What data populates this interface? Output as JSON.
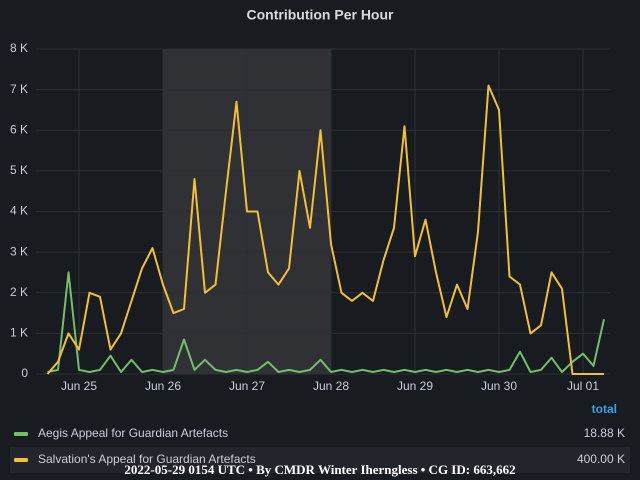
{
  "chart_data": {
    "type": "line",
    "title": "Contribution Per Hour",
    "categories": [
      null,
      null,
      null,
      "Jun 25",
      null,
      null,
      null,
      null,
      null,
      null,
      null,
      "Jun 26",
      null,
      null,
      null,
      null,
      null,
      null,
      null,
      "Jun 27",
      null,
      null,
      null,
      null,
      null,
      null,
      null,
      "Jun 28",
      null,
      null,
      null,
      null,
      null,
      null,
      null,
      "Jun 29",
      null,
      null,
      null,
      null,
      null,
      null,
      null,
      "Jun 30",
      null,
      null,
      null,
      null,
      null,
      null,
      null,
      "Jul 01",
      null,
      null
    ],
    "series": [
      {
        "name": "Aegis Appeal for Guardian Artefacts",
        "color": "#73bf69",
        "total": "18.88 K",
        "values": [
          50,
          100,
          2500,
          100,
          50,
          100,
          450,
          50,
          350,
          50,
          100,
          50,
          100,
          850,
          100,
          350,
          100,
          50,
          100,
          50,
          100,
          300,
          50,
          100,
          50,
          100,
          350,
          50,
          100,
          50,
          100,
          50,
          100,
          50,
          100,
          50,
          100,
          50,
          100,
          50,
          100,
          50,
          100,
          50,
          100,
          550,
          50,
          100,
          400,
          50,
          300,
          500,
          200,
          1350
        ]
      },
      {
        "name": "Salvation's Appeal for Guardian Artefacts",
        "color": "#f2c037",
        "total": "400.00 K",
        "values": [
          0,
          300,
          1000,
          600,
          2000,
          1900,
          600,
          1000,
          1800,
          2600,
          3100,
          2200,
          1500,
          1600,
          4800,
          2000,
          2200,
          4500,
          6700,
          4000,
          4000,
          2500,
          2200,
          2600,
          5000,
          3600,
          6000,
          3200,
          2000,
          1800,
          2000,
          1800,
          2800,
          3600,
          6100,
          2900,
          3800,
          2500,
          1400,
          2200,
          1600,
          3500,
          7100,
          6500,
          2400,
          2200,
          1000,
          1200,
          2500,
          2100,
          0,
          0,
          0,
          0
        ]
      }
    ],
    "ylim": [
      0,
      8000
    ],
    "yticks": [
      0,
      {
        "value": 1000,
        "label": "1 K"
      },
      {
        "value": 2000,
        "label": "2 K"
      },
      {
        "value": 3000,
        "label": "3 K"
      },
      {
        "value": 4000,
        "label": "4 K"
      },
      {
        "value": 5000,
        "label": "5 K"
      },
      {
        "value": 6000,
        "label": "6 K"
      },
      {
        "value": 7000,
        "label": "7 K"
      },
      {
        "value": 8000,
        "label": "8 K"
      }
    ],
    "grid": true,
    "legend_column": "total",
    "footer": "2022-05-29 0154 UTC • By CMDR Winter Iherngless • CG ID: 663,662"
  }
}
